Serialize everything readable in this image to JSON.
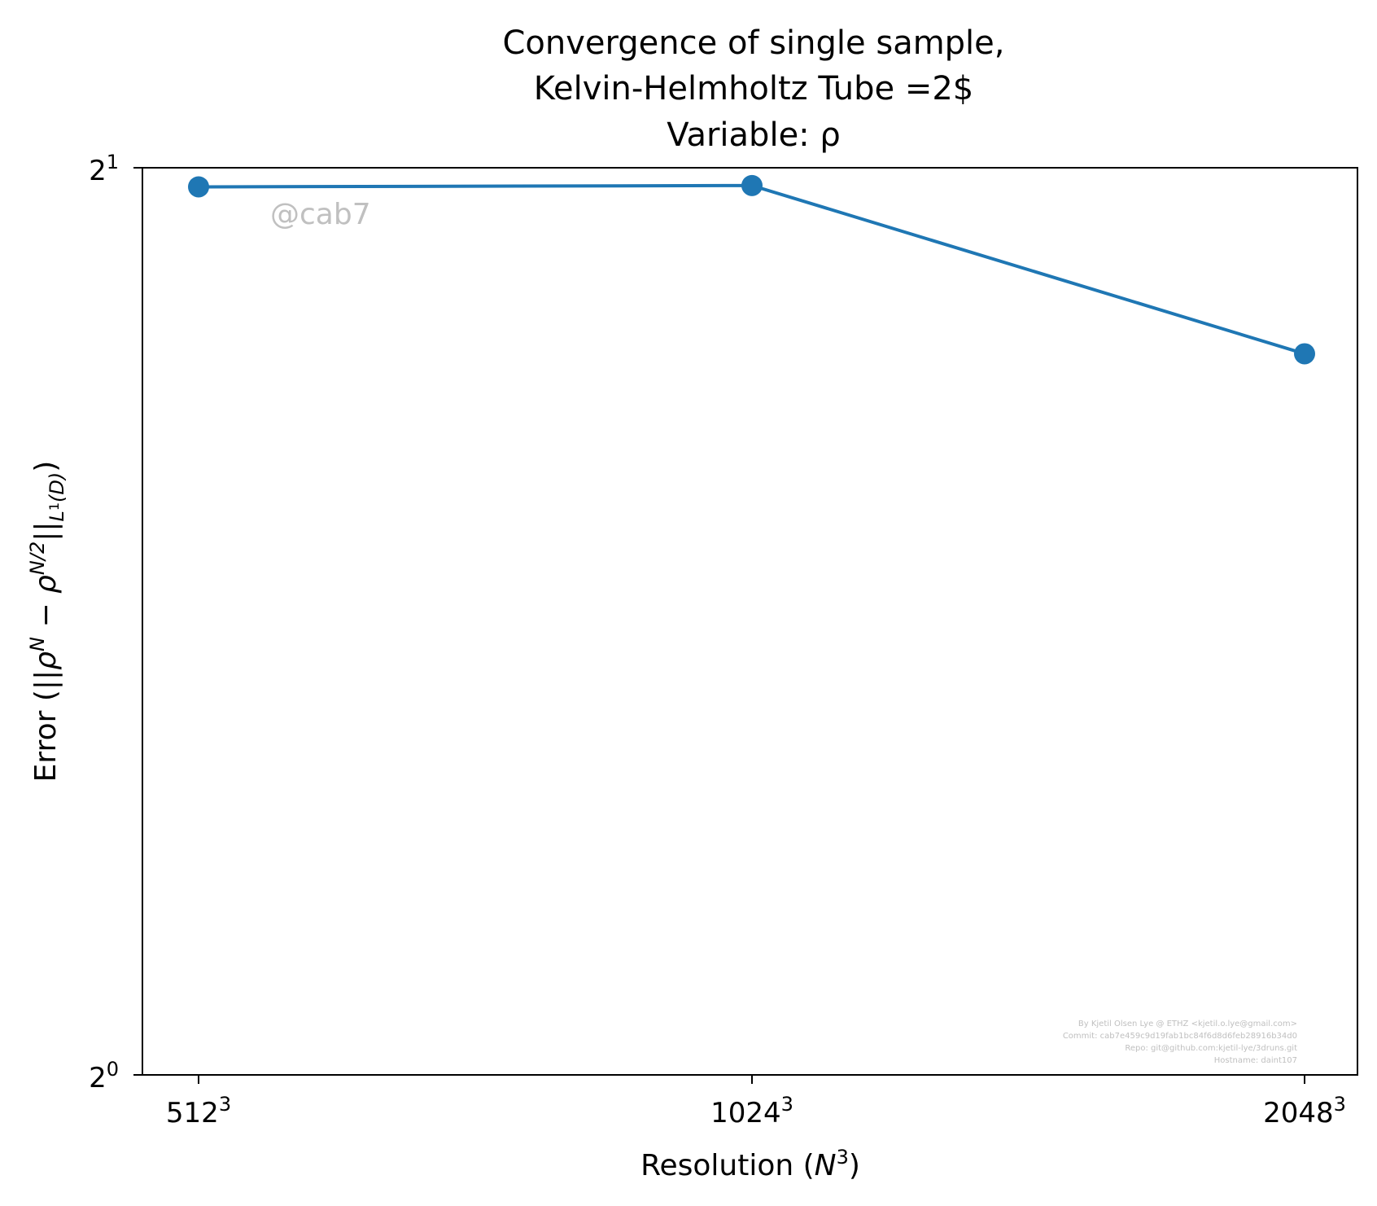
{
  "chart_data": {
    "type": "line",
    "title_lines": [
      "Convergence of single sample,",
      "Kelvin-Helmholtz Tube =2$",
      "Variable: ρ"
    ],
    "xlabel": "Resolution (N³)",
    "ylabel": "Error (||ρᴺ − ρᴺ/²||L¹(D))",
    "x_scale": "log2",
    "y_scale": "log2",
    "ylim": [
      1,
      2
    ],
    "categories": [
      "512³",
      "1024³",
      "2048³"
    ],
    "x": [
      512,
      1024,
      2048
    ],
    "x_tick_base": [
      "512",
      "1024",
      "2048"
    ],
    "x_tick_exp": "3",
    "y_ticks": [
      {
        "base": "2",
        "exp": "0",
        "value": 1
      },
      {
        "base": "2",
        "exp": "1",
        "value": 2
      }
    ],
    "series": [
      {
        "values": [
          1.971,
          1.973,
          1.735
        ],
        "color": "#1f77b4",
        "marker": "circle"
      }
    ],
    "grid": false,
    "watermark": "@cab7",
    "footer_lines": [
      "By Kjetil Olsen Lye @ ETHZ <kjetil.o.lye@gmail.com>",
      "Commit: cab7e459c9d19fab1bc84f6d8d6feb28916b34d0",
      "Repo: git@github.com:kjetil-lye/3druns.git",
      "Hostname: daint107"
    ]
  }
}
